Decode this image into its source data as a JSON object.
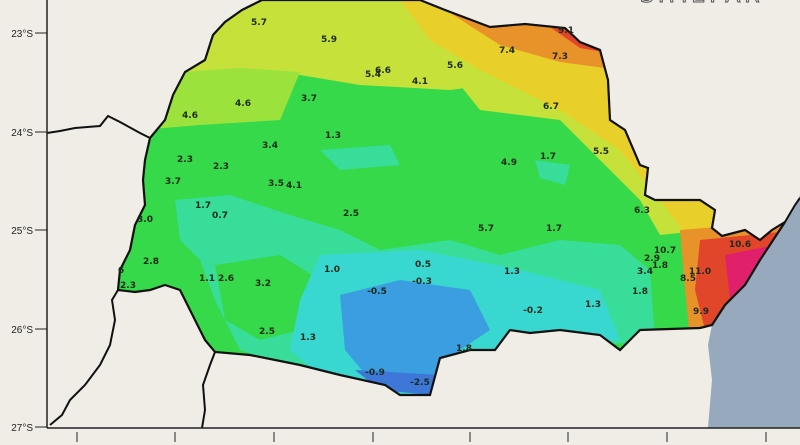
{
  "map": {
    "watermark": "SIMEPAR",
    "lat_ticks": [
      "23°S",
      "24°S",
      "25°S",
      "26°S",
      "27°S"
    ],
    "colors": {
      "background": "#efede6",
      "ocean": "#97a9bd",
      "base_green": "#35d94a",
      "light_green": "#9be23c",
      "yellow_green": "#c6e23a",
      "yellow": "#e9cf2a",
      "orange": "#e8922a",
      "red": "#e2462a",
      "magenta": "#e0206a",
      "teal": "#38dd9a",
      "cyan": "#38d8d0",
      "blue": "#3a9ee0",
      "dark_blue": "#3d78d8"
    },
    "values": [
      "5.7",
      "5.9",
      "5.4",
      "6.6",
      "4.1",
      "5.6",
      "7.4",
      "7.3",
      "9.1",
      "6.7",
      "4.6",
      "4.6",
      "3.7",
      "1.3",
      "3.4",
      "2.3",
      "2.3",
      "3.7",
      "3.5",
      "4.1",
      "4.9",
      "1.7",
      "5.5",
      "1.7",
      "0.7",
      "2.5",
      "3.0",
      "6.3",
      "5.7",
      "1.7",
      "2.8",
      "6",
      "2.3",
      "1.1",
      "2.6",
      "3.2",
      "1.0",
      "0.5",
      "-0.3",
      "-0.5",
      "1.3",
      "2.9",
      "10.7",
      "10.6",
      "1.8",
      "3.4",
      "11.0",
      "8.5",
      "1.8",
      "1.3",
      "-0.2",
      "9.9",
      "2.5",
      "1.3",
      "1.8",
      "-0.9",
      "-2.5"
    ]
  }
}
